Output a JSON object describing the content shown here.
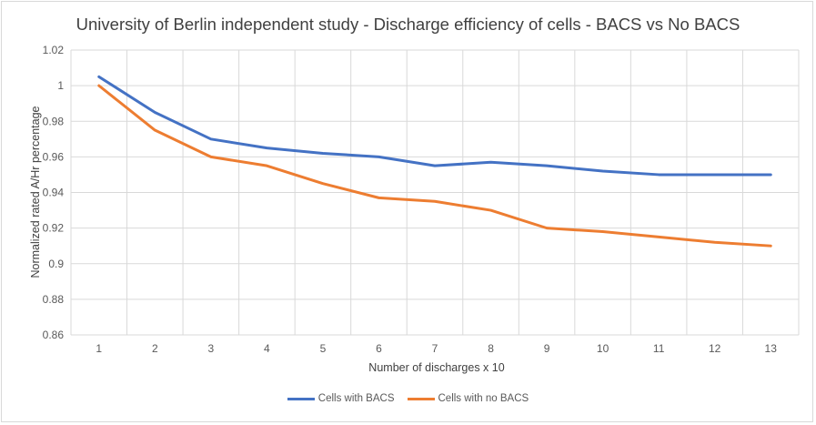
{
  "chart_data": {
    "type": "line",
    "title": "University of Berlin independent study - Discharge efficiency of cells - BACS vs No BACS",
    "xlabel": "Number of discharges x 10",
    "ylabel": "Normalized rated A/Hr percentage",
    "categories": [
      "1",
      "2",
      "3",
      "4",
      "5",
      "6",
      "7",
      "8",
      "9",
      "10",
      "11",
      "12",
      "13"
    ],
    "ylim": [
      0.86,
      1.02
    ],
    "yticks": [
      "0.86",
      "0.88",
      "0.9",
      "0.92",
      "0.94",
      "0.96",
      "0.98",
      "1",
      "1.02"
    ],
    "grid": true,
    "legend_position": "bottom",
    "series": [
      {
        "name": "Cells with BACS",
        "color": "#4472c4",
        "values": [
          1.005,
          0.985,
          0.97,
          0.965,
          0.962,
          0.96,
          0.955,
          0.957,
          0.955,
          0.952,
          0.95,
          0.95,
          0.95
        ]
      },
      {
        "name": "Cells with no BACS",
        "color": "#ed7d31",
        "values": [
          1.0,
          0.975,
          0.96,
          0.955,
          0.945,
          0.937,
          0.935,
          0.93,
          0.92,
          0.918,
          0.915,
          0.912,
          0.91
        ]
      }
    ]
  }
}
